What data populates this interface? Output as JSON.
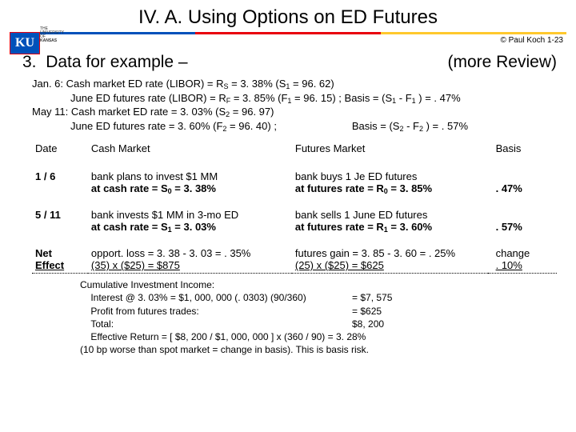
{
  "title": "IV. A.  Using Options on ED Futures",
  "copyright": "© Paul Koch 1-23",
  "logo_text": "THE UNIVERSITY OF",
  "logo_name": "KANSAS",
  "logo_ku": "KU",
  "section": {
    "num": "3.",
    "label": "Data for example –",
    "right": "(more Review)"
  },
  "lines": {
    "l1a": "Jan. 6:   Cash market ED rate (LIBOR)  =  R",
    "l1b": "  =  3. 38%  (S",
    "l1c": " = 96. 62)",
    "l2a": "June ED futures  rate (LIBOR)  =  R",
    "l2b": "  =  3. 85%  (F",
    "l2c": " = 96. 15) ;   Basis  =  (S",
    "l2d": " - F",
    "l2e": " )  =  . 47%",
    "l3a": "May 11: Cash market ED rate  =  3. 03%  (S",
    "l3b": " = 96. 97)",
    "l4a": "June ED futures  rate =  3. 60%  (F",
    "l4b": " = 96. 40) ;",
    "l4c": "Basis  =  (S",
    "l4d": " - F",
    "l4e": " )  =  . 57%"
  },
  "table": {
    "headers": {
      "date": "Date",
      "cash": "Cash Market",
      "fut": "Futures Market",
      "basis": "Basis"
    },
    "r1": {
      "date": "1 / 6",
      "cash1": "bank plans to invest  $1 MM",
      "cash2a": "at cash rate  =  S",
      "cash2b": "  =  3. 38%",
      "fut1": "bank buys 1 Je ED futures",
      "fut2a": "at futures rate  =  R",
      "fut2b": "  =  3. 85%",
      "basis": ". 47%"
    },
    "r2": {
      "date": "5 / 11",
      "cash1": "bank invests $1 MM in 3-mo ED",
      "cash2a": "at cash rate  =  S",
      "cash2b": "  =  3. 03%",
      "fut1": "bank sells 1 June ED futures",
      "fut2a": "at futures rate  =  R",
      "fut2b": "  =  3. 60%",
      "basis": ". 57%"
    },
    "r3": {
      "date1": "Net",
      "date2": "Effect",
      "cash1": "opport. loss = 3. 38 - 3. 03 = . 35%",
      "cash2": "(35) x ($25) = $875",
      "fut1": "futures gain = 3. 85 - 3. 60 = . 25%",
      "fut2": "(25) x ($25) = $625",
      "basis1": "change",
      "basis2": ". 10%"
    }
  },
  "summary": {
    "head": "Cumulative Investment Income:",
    "r1l": "Interest @ 3. 03%   =   $1, 000, 000 (. 0303) (90/360)",
    "r1v": "=    $7, 575",
    "r2l": "Profit from futures trades:",
    "r2v": "=       $625",
    "r3l": "Total:",
    "r3v": "     $8, 200",
    "r4": "Effective Return  =  [ $8, 200 / $1, 000, 000 ] x (360 / 90)    =      3. 28%",
    "r5": "(10 bp worse than spot market  =  change in basis).  This is basis risk."
  },
  "colors": {
    "blue": "#0051ba",
    "red": "#e8000d",
    "yellow": "#ffc82d"
  }
}
